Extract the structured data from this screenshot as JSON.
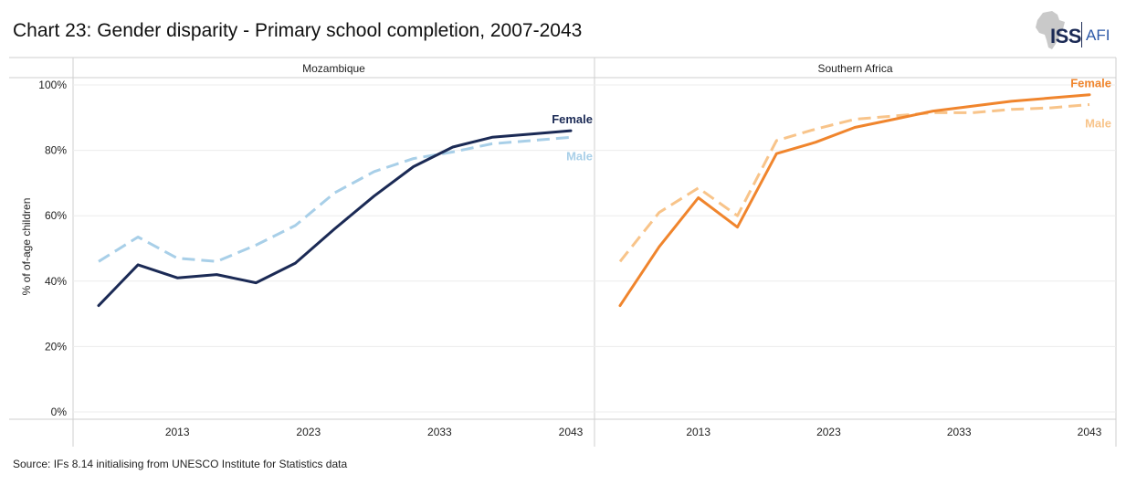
{
  "title": "Chart 23: Gender disparity - Primary school completion, 2007-2043",
  "source": "Source: IFs 8.14 initialising from UNESCO Institute for Statistics data",
  "logo": {
    "iss": "ISS",
    "afi": "AFI"
  },
  "chart_data": {
    "type": "line",
    "ylabel": "% of of-age children",
    "ylim": [
      0,
      100
    ],
    "yticks": [
      0,
      20,
      40,
      60,
      80,
      100
    ],
    "ytick_labels": [
      "0%",
      "20%",
      "40%",
      "60%",
      "80%",
      "100%"
    ],
    "xticks": [
      2013,
      2023,
      2033,
      2043
    ],
    "xtick_labels": [
      "2013",
      "2023",
      "2033",
      "2043"
    ],
    "xlim": [
      2007,
      2043
    ],
    "grid": true,
    "panels": [
      {
        "title": "Mozambique",
        "series": [
          {
            "name": "Female",
            "color": "#1b2a55",
            "dash": "solid",
            "x": [
              2007,
              2010,
              2013,
              2016,
              2019,
              2022,
              2025,
              2028,
              2031,
              2034,
              2037,
              2040,
              2043
            ],
            "values": [
              32.5,
              45,
              41,
              42,
              39.5,
              45.5,
              56,
              66,
              75,
              81,
              84,
              85,
              86
            ]
          },
          {
            "name": "Male",
            "color": "#a8cfe8",
            "dash": "dashed",
            "x": [
              2007,
              2010,
              2013,
              2016,
              2019,
              2022,
              2025,
              2028,
              2031,
              2034,
              2037,
              2040,
              2043
            ],
            "values": [
              46,
              53.5,
              47,
              46,
              51,
              57,
              67,
              73.5,
              77.5,
              79.5,
              82,
              83,
              84
            ]
          }
        ]
      },
      {
        "title": "Southern Africa",
        "series": [
          {
            "name": "Female",
            "color": "#f0852d",
            "dash": "solid",
            "x": [
              2007,
              2010,
              2013,
              2016,
              2019,
              2022,
              2025,
              2028,
              2031,
              2034,
              2037,
              2040,
              2043
            ],
            "values": [
              32.5,
              50.5,
              65.5,
              56.5,
              79,
              82.5,
              87,
              89.5,
              92,
              93.5,
              95,
              96,
              97
            ]
          },
          {
            "name": "Male",
            "color": "#f8c48a",
            "dash": "dashed",
            "x": [
              2007,
              2010,
              2013,
              2016,
              2019,
              2022,
              2025,
              2028,
              2031,
              2034,
              2037,
              2040,
              2043
            ],
            "values": [
              46,
              61,
              68.5,
              60,
              83,
              86.5,
              89.5,
              90.5,
              91.5,
              91.5,
              92.5,
              93,
              94
            ]
          }
        ]
      }
    ]
  }
}
